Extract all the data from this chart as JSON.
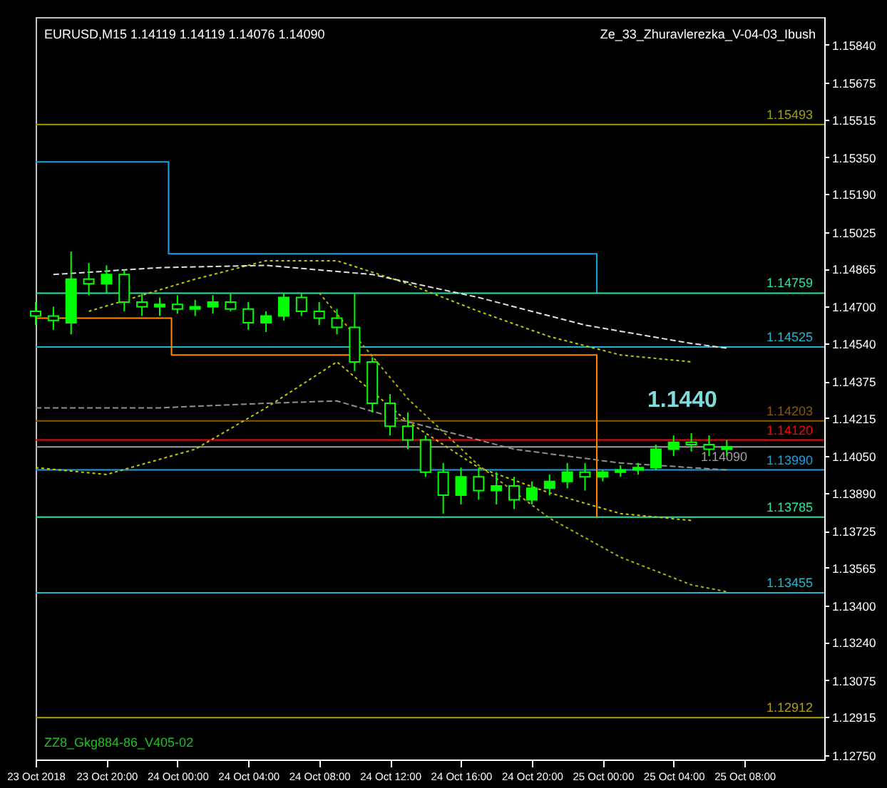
{
  "chart_data": {
    "type": "candlestick",
    "title": "EURUSD,M15  1.14119 1.14119 1.14076 1.14090",
    "color": "#00ff00",
    "x": [
      "2018-10-23T16:00",
      "2018-10-23T17:00",
      "2018-10-23T18:00",
      "2018-10-23T19:00",
      "2018-10-23T20:00",
      "2018-10-23T21:00",
      "2018-10-23T22:00",
      "2018-10-23T23:00",
      "2018-10-24T00:00",
      "2018-10-24T01:00",
      "2018-10-24T02:00",
      "2018-10-24T03:00",
      "2018-10-24T04:00",
      "2018-10-24T05:00",
      "2018-10-24T06:00",
      "2018-10-24T07:00",
      "2018-10-24T08:00",
      "2018-10-24T09:00",
      "2018-10-24T10:00",
      "2018-10-24T11:00",
      "2018-10-24T12:00",
      "2018-10-24T13:00",
      "2018-10-24T14:00",
      "2018-10-24T15:00",
      "2018-10-24T16:00",
      "2018-10-24T17:00",
      "2018-10-24T18:00",
      "2018-10-24T19:00",
      "2018-10-24T20:00",
      "2018-10-24T21:00",
      "2018-10-24T22:00",
      "2018-10-24T23:00",
      "2018-10-25T00:00",
      "2018-10-25T01:00",
      "2018-10-25T02:00",
      "2018-10-25T03:00",
      "2018-10-25T04:00",
      "2018-10-25T05:00",
      "2018-10-25T06:00",
      "2018-10-25T07:00"
    ],
    "ohlc": [
      [
        1.1468,
        1.1472,
        1.1462,
        1.1466
      ],
      [
        1.1466,
        1.147,
        1.146,
        1.1464
      ],
      [
        1.1463,
        1.1494,
        1.1458,
        1.1482
      ],
      [
        1.1482,
        1.1489,
        1.1475,
        1.148
      ],
      [
        1.148,
        1.1488,
        1.1476,
        1.1484
      ],
      [
        1.1484,
        1.1486,
        1.1468,
        1.1472
      ],
      [
        1.1472,
        1.1476,
        1.1466,
        1.147
      ],
      [
        1.147,
        1.1474,
        1.1466,
        1.1471
      ],
      [
        1.1471,
        1.1475,
        1.1467,
        1.1469
      ],
      [
        1.1469,
        1.1473,
        1.1466,
        1.147
      ],
      [
        1.147,
        1.1475,
        1.1467,
        1.1472
      ],
      [
        1.1472,
        1.1476,
        1.1468,
        1.1469
      ],
      [
        1.1469,
        1.1472,
        1.146,
        1.1463
      ],
      [
        1.1463,
        1.1468,
        1.1459,
        1.1466
      ],
      [
        1.1466,
        1.1476,
        1.1464,
        1.1474
      ],
      [
        1.1474,
        1.1476,
        1.1466,
        1.1468
      ],
      [
        1.1468,
        1.1472,
        1.1462,
        1.1465
      ],
      [
        1.1465,
        1.1469,
        1.1458,
        1.1461
      ],
      [
        1.1461,
        1.1476,
        1.1442,
        1.1446
      ],
      [
        1.1446,
        1.1448,
        1.1424,
        1.1428
      ],
      [
        1.1428,
        1.1432,
        1.1414,
        1.1418
      ],
      [
        1.1418,
        1.1424,
        1.1408,
        1.1412
      ],
      [
        1.1412,
        1.1414,
        1.1396,
        1.1398
      ],
      [
        1.1398,
        1.1402,
        1.138,
        1.1388
      ],
      [
        1.1388,
        1.14,
        1.1384,
        1.1396
      ],
      [
        1.1396,
        1.14,
        1.1386,
        1.139
      ],
      [
        1.139,
        1.1398,
        1.1384,
        1.1392
      ],
      [
        1.1392,
        1.1396,
        1.1382,
        1.1386
      ],
      [
        1.1386,
        1.1394,
        1.1384,
        1.1391
      ],
      [
        1.1391,
        1.1397,
        1.1388,
        1.1394
      ],
      [
        1.1394,
        1.1402,
        1.1391,
        1.1398
      ],
      [
        1.1398,
        1.1402,
        1.139,
        1.1396
      ],
      [
        1.1396,
        1.1399,
        1.1394,
        1.1398
      ],
      [
        1.1398,
        1.1401,
        1.1396,
        1.1399
      ],
      [
        1.1399,
        1.1402,
        1.1397,
        1.14
      ],
      [
        1.14,
        1.141,
        1.1399,
        1.1408
      ],
      [
        1.1408,
        1.1414,
        1.1405,
        1.1411
      ],
      [
        1.1411,
        1.1415,
        1.1407,
        1.141
      ],
      [
        1.141,
        1.1414,
        1.1405,
        1.1408
      ],
      [
        1.1408,
        1.1412,
        1.1405,
        1.1409
      ]
    ],
    "series": [
      {
        "type": "line",
        "color": "#1aa3e0",
        "line_style": "solid",
        "x": [
          "2018-10-23T16:00",
          "2018-10-23T23:30",
          "2018-10-23T23:30",
          "2018-10-24T23:40",
          "2018-10-24T23:40"
        ],
        "values": [
          1.1533,
          1.1533,
          1.1493,
          1.1493,
          1.1476
        ]
      },
      {
        "type": "line",
        "color": "#ff8c00",
        "line_style": "solid",
        "x": [
          "2018-10-23T16:00",
          "2018-10-23T23:40",
          "2018-10-23T23:40",
          "2018-10-24T23:40",
          "2018-10-24T23:40"
        ],
        "values": [
          1.1465,
          1.1465,
          1.1449,
          1.1449,
          1.1378
        ]
      },
      {
        "type": "line",
        "color": "#c8c800",
        "line_style": "dotted",
        "x": [
          "2018-10-23T19:00",
          "2018-10-24T01:00",
          "2018-10-24T05:00",
          "2018-10-24T09:00",
          "2018-10-24T13:00",
          "2018-10-24T17:00",
          "2018-10-24T21:00",
          "2018-10-25T01:00",
          "2018-10-25T05:00"
        ],
        "values": [
          1.1468,
          1.1482,
          1.149,
          1.149,
          1.148,
          1.1468,
          1.1457,
          1.1449,
          1.1446
        ]
      },
      {
        "type": "line",
        "color": "#c8c800",
        "line_style": "dotted",
        "x": [
          "2018-10-23T16:00",
          "2018-10-23T20:00",
          "2018-10-24T01:00",
          "2018-10-24T05:00",
          "2018-10-24T09:00",
          "2018-10-24T13:00",
          "2018-10-24T17:00",
          "2018-10-24T21:00",
          "2018-10-25T01:00",
          "2018-10-25T05:00"
        ],
        "values": [
          1.14,
          1.1397,
          1.1408,
          1.1426,
          1.1446,
          1.142,
          1.14,
          1.1389,
          1.138,
          1.1377
        ]
      },
      {
        "type": "line",
        "color": "#b0b000",
        "line_style": "dotted",
        "x": [
          "2018-10-24T08:00",
          "2018-10-24T10:30",
          "2018-10-24T13:00",
          "2018-10-24T17:00",
          "2018-10-24T21:00",
          "2018-10-25T01:00",
          "2018-10-25T05:00",
          "2018-10-25T07:00"
        ],
        "values": [
          1.1476,
          1.1453,
          1.143,
          1.1401,
          1.1378,
          1.1361,
          1.1349,
          1.1346
        ]
      },
      {
        "type": "line",
        "color": "#e0e0e0",
        "line_style": "dashed",
        "x": [
          "2018-10-23T17:00",
          "2018-10-23T23:00",
          "2018-10-24T05:00",
          "2018-10-24T11:00",
          "2018-10-24T17:00",
          "2018-10-24T23:00",
          "2018-10-25T05:00",
          "2018-10-25T07:00"
        ],
        "values": [
          1.1484,
          1.1487,
          1.1488,
          1.1484,
          1.1474,
          1.1462,
          1.1454,
          1.1452
        ]
      },
      {
        "type": "line",
        "color": "#909090",
        "line_style": "dashed",
        "x": [
          "2018-10-23T16:00",
          "2018-10-23T23:00",
          "2018-10-24T05:00",
          "2018-10-24T09:00",
          "2018-10-24T13:00",
          "2018-10-24T19:00",
          "2018-10-25T01:00",
          "2018-10-25T07:00"
        ],
        "values": [
          1.1426,
          1.1426,
          1.1428,
          1.1429,
          1.142,
          1.1408,
          1.1402,
          1.1399
        ]
      }
    ],
    "ylim": [
      1.1273,
      1.1596
    ],
    "yticks": [
      {
        "value": 1.1584,
        "label": "1.15840"
      },
      1.15675,
      1.15515,
      {
        "value": 1.1535,
        "label": "1.15350"
      },
      {
        "value": 1.1519,
        "label": "1.15190"
      },
      1.15025,
      1.14865,
      {
        "value": 1.147,
        "label": "1.14700"
      },
      {
        "value": 1.1454,
        "label": "1.14540"
      },
      1.14375,
      1.14215,
      {
        "value": 1.1405,
        "label": "1.14050"
      },
      {
        "value": 1.1389,
        "label": "1.13890"
      },
      1.13725,
      1.13565,
      {
        "value": 1.134,
        "label": "1.13400"
      },
      {
        "value": 1.1324,
        "label": "1.13240"
      },
      1.13075,
      1.12915,
      {
        "value": 1.1275,
        "label": "1.12750"
      }
    ],
    "xlim": [
      "2018-10-23T16:00",
      "2018-10-25T12:30"
    ],
    "xticks": [
      {
        "value": "2018-10-23T16:00",
        "label": "23 Oct 2018"
      },
      {
        "value": "2018-10-23T20:00",
        "label": "23 Oct 20:00"
      },
      {
        "value": "2018-10-24T00:00",
        "label": "24 Oct 00:00"
      },
      {
        "value": "2018-10-24T04:00",
        "label": "24 Oct 04:00"
      },
      {
        "value": "2018-10-24T08:00",
        "label": "24 Oct 08:00"
      },
      {
        "value": "2018-10-24T12:00",
        "label": "24 Oct 12:00"
      },
      {
        "value": "2018-10-24T16:00",
        "label": "24 Oct 16:00"
      },
      {
        "value": "2018-10-24T20:00",
        "label": "24 Oct 20:00"
      },
      {
        "value": "2018-10-25T00:00",
        "label": "25 Oct 00:00"
      },
      {
        "value": "2018-10-25T04:00",
        "label": "25 Oct 04:00"
      },
      {
        "value": "2018-10-25T08:00",
        "label": "25 Oct 08:00"
      }
    ],
    "ref_lines": [
      {
        "axis": "y",
        "value": 1.15493,
        "label": "1.15493",
        "color": "#a0a000"
      },
      {
        "axis": "y",
        "value": 1.14759,
        "label": "1.14759",
        "color": "#20e8a8"
      },
      {
        "axis": "y",
        "value": 1.14525,
        "label": "1.14525",
        "color": "#20b8d0"
      },
      {
        "axis": "y",
        "value": 1.14203,
        "label": "1.14203",
        "color": "#8b5a00"
      },
      {
        "axis": "y",
        "value": 1.1412,
        "label": "1.14120",
        "color": "#ff0000"
      },
      {
        "axis": "y",
        "value": 1.1409,
        "label": "1.14090",
        "color": "#a0a0a0"
      },
      {
        "axis": "y",
        "value": 1.1399,
        "label": "1.13990",
        "color": "#1aa3e0"
      },
      {
        "axis": "y",
        "value": 1.13785,
        "label": "1.13785",
        "color": "#20e8a8"
      },
      {
        "axis": "y",
        "value": 1.13455,
        "label": "1.13455",
        "color": "#20b8d0"
      },
      {
        "axis": "y",
        "value": 1.12912,
        "label": "1.12912",
        "color": "#b0a000"
      }
    ],
    "annotations": [
      "Ze_33_Zhuravlerezka_V-04-03_Ibush",
      "ZZ8_Gkg884-86_V405-02",
      "1.1440"
    ],
    "grid": false,
    "marker": "none"
  }
}
